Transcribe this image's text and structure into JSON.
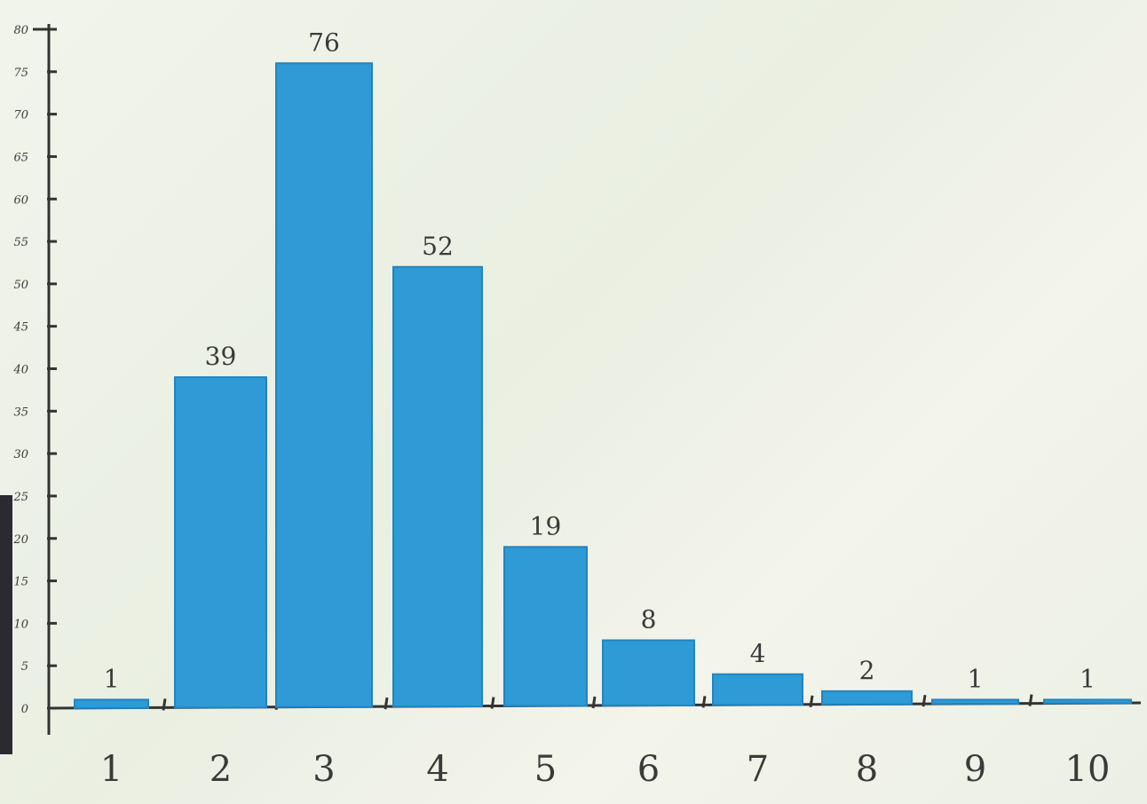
{
  "chart_data": {
    "type": "bar",
    "categories": [
      "1",
      "2",
      "3",
      "4",
      "5",
      "6",
      "7",
      "8",
      "9",
      "10"
    ],
    "values": [
      1,
      39,
      76,
      52,
      19,
      8,
      4,
      2,
      1,
      1
    ],
    "data_labels": [
      "1",
      "39",
      "76",
      "52",
      "19",
      "8",
      "4",
      "2",
      "1",
      "1"
    ],
    "ylim": [
      0,
      80
    ],
    "yticks": [
      0,
      5,
      10,
      15,
      20,
      25,
      30,
      35,
      40,
      45,
      50,
      55,
      60,
      65,
      70,
      75,
      80
    ],
    "ytick_labels": [
      "0",
      "5",
      "10",
      "15",
      "20",
      "25",
      "30",
      "35",
      "40",
      "45",
      "50",
      "55",
      "60",
      "65",
      "70",
      "75",
      "80"
    ],
    "title": "",
    "xlabel": "",
    "ylabel": "",
    "grid": false,
    "bar_color": "#2e9ad6"
  }
}
